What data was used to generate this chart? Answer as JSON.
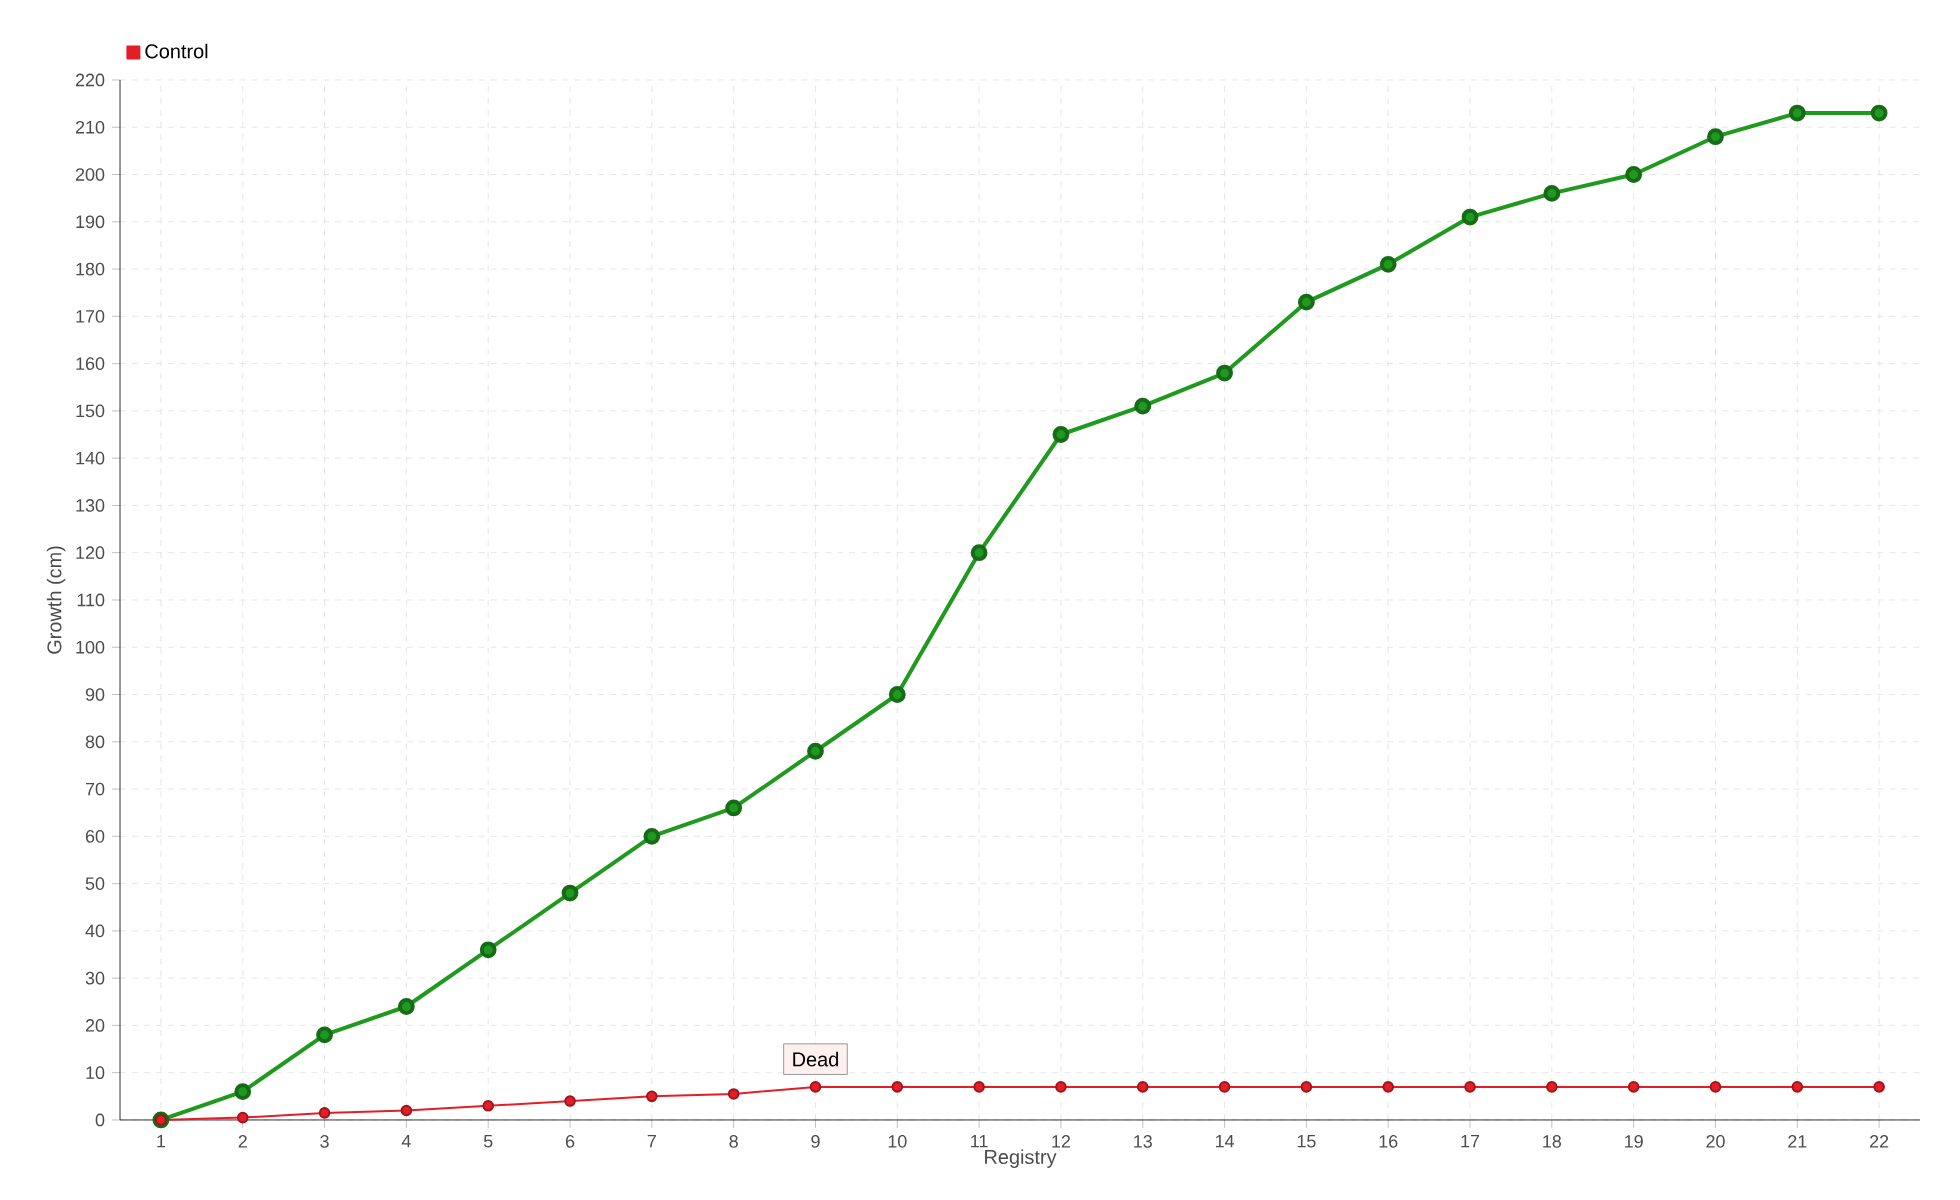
{
  "chart_data": {
    "type": "line",
    "xlabel": "Registry",
    "ylabel": "Growth (cm)",
    "categories": [
      "1",
      "2",
      "3",
      "4",
      "5",
      "6",
      "7",
      "8",
      "9",
      "10",
      "11",
      "12",
      "13",
      "14",
      "15",
      "16",
      "17",
      "18",
      "19",
      "20",
      "21",
      "22"
    ],
    "series": [
      {
        "color": "#1f9a1f",
        "values": [
          0,
          6,
          18,
          24,
          36,
          48,
          60,
          66,
          78,
          90,
          120,
          145,
          151,
          158,
          173,
          181,
          191,
          196,
          200,
          208,
          213,
          213
        ]
      },
      {
        "name": "Control",
        "color": "#e41e26",
        "values": [
          0,
          0.5,
          1.5,
          2,
          3,
          4,
          5,
          5.5,
          7,
          7,
          7,
          7,
          7,
          7,
          7,
          7,
          7,
          7,
          7,
          7,
          7,
          7
        ]
      }
    ],
    "ylim": [
      0,
      220
    ],
    "yticks": [
      0,
      10,
      20,
      30,
      40,
      50,
      60,
      70,
      80,
      90,
      100,
      110,
      120,
      130,
      140,
      150,
      160,
      170,
      180,
      190,
      200,
      210,
      220
    ],
    "annotations": [
      {
        "text": "Dead",
        "x": "9",
        "y": 7
      }
    ],
    "grid": true,
    "legend": "top left",
    "marker": "circle",
    "line_style": "solid"
  }
}
